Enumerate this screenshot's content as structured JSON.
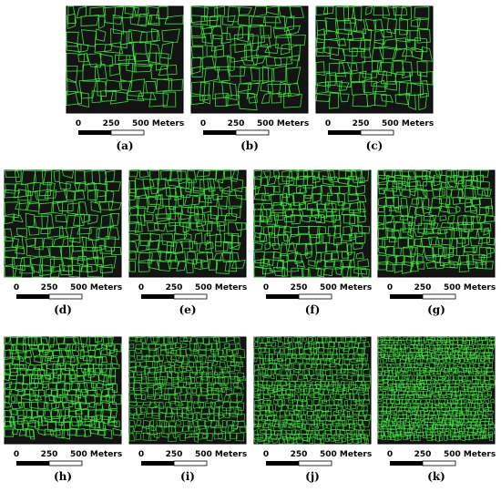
{
  "panels": [
    {
      "label": "(a)"
    },
    {
      "label": "(b)"
    },
    {
      "label": "(c)"
    },
    {
      "label": "(d)"
    },
    {
      "label": "(e)"
    },
    {
      "label": "(f)"
    },
    {
      "label": "(g)"
    },
    {
      "label": "(h)"
    },
    {
      "label": "(i)"
    },
    {
      "label": "(j)"
    },
    {
      "label": "(k)"
    }
  ],
  "scale_bar": {
    "labels": [
      "0",
      "250",
      "500 Meters"
    ]
  }
}
